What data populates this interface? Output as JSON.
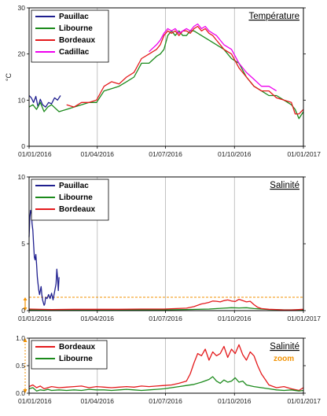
{
  "chart_data": [
    {
      "type": "line",
      "title": "Température",
      "ylabel": "°C",
      "xlabel": "",
      "ylim": [
        0,
        30
      ],
      "yticks": [
        "0",
        "10",
        "20",
        "30"
      ],
      "xlim": [
        0,
        366
      ],
      "xticks": [
        {
          "x": 0,
          "label": "01/01/2016"
        },
        {
          "x": 91,
          "label": "01/04/2016"
        },
        {
          "x": 182,
          "label": "01/07/2016"
        },
        {
          "x": 274,
          "label": "01/10/2016"
        },
        {
          "x": 366,
          "label": "01/01/2017"
        }
      ],
      "legend_position": "top-left",
      "grid": "vertical",
      "series": [
        {
          "name": "Pauillac",
          "color": "#1f1f8f",
          "x": [
            0,
            3,
            6,
            9,
            12,
            15,
            18,
            22,
            26,
            30,
            34,
            38,
            42
          ],
          "y": [
            11,
            10.5,
            9.5,
            10.8,
            8.5,
            10.2,
            9,
            8.5,
            9.5,
            9.2,
            10.5,
            10,
            11
          ]
        },
        {
          "name": "Libourne",
          "color": "#1b8a1b",
          "x": [
            0,
            5,
            10,
            15,
            20,
            25,
            30,
            40,
            50,
            60,
            70,
            80,
            90,
            100,
            110,
            120,
            130,
            140,
            150,
            160,
            170,
            175,
            180,
            185,
            190,
            195,
            200,
            205,
            210,
            215,
            220,
            230,
            240,
            250,
            260,
            270,
            280,
            290,
            300,
            310,
            320,
            330,
            340,
            350,
            355,
            360,
            366
          ],
          "y": [
            8.5,
            9,
            8,
            9.5,
            7.5,
            8.5,
            9,
            7.5,
            8,
            8.5,
            9,
            9.5,
            9.5,
            12,
            12.5,
            13,
            14,
            15,
            18,
            18,
            19.5,
            20,
            21,
            24,
            25,
            24,
            25,
            24,
            24,
            25,
            25,
            24,
            23,
            22,
            21,
            19,
            18,
            15,
            13,
            12,
            11,
            11,
            10,
            9,
            8,
            6,
            7.5
          ]
        },
        {
          "name": "Bordeaux",
          "color": "#e41a1c",
          "x": [
            50,
            60,
            70,
            80,
            90,
            95,
            100,
            110,
            120,
            130,
            140,
            150,
            160,
            170,
            175,
            180,
            185,
            190,
            195,
            200,
            205,
            210,
            215,
            220,
            225,
            230,
            235,
            240,
            245,
            250,
            255,
            260,
            270,
            280,
            290,
            300,
            310,
            320,
            330,
            340,
            350,
            355,
            360,
            366
          ],
          "y": [
            9,
            8.5,
            9.5,
            9.5,
            10,
            11.5,
            13,
            14,
            13.5,
            15,
            16,
            19,
            20,
            21,
            22,
            24,
            25,
            24.5,
            25,
            24,
            25,
            25,
            24.5,
            25.5,
            26,
            25,
            25.5,
            24.5,
            24,
            23,
            22,
            21,
            20,
            17,
            15,
            13,
            12,
            12,
            10.5,
            10,
            9.5,
            7,
            7,
            8
          ]
        },
        {
          "name": "Cadillac",
          "color": "#ee00ee",
          "x": [
            160,
            170,
            175,
            180,
            185,
            190,
            195,
            200,
            205,
            210,
            215,
            220,
            225,
            230,
            235,
            240,
            245,
            250,
            255,
            260,
            270,
            280,
            290,
            300,
            310,
            320,
            330
          ],
          "y": [
            20.5,
            22,
            23,
            24.5,
            25.5,
            25,
            25.5,
            24.5,
            25,
            25.5,
            25,
            26,
            26.5,
            25.5,
            26,
            25,
            24.5,
            24,
            23,
            22,
            21,
            18,
            16,
            14.5,
            13,
            13,
            12
          ]
        }
      ]
    },
    {
      "type": "line",
      "title": "Salinité",
      "ylabel": "",
      "xlabel": "",
      "ylim": [
        0,
        10
      ],
      "yticks": [
        "0",
        "5",
        "10"
      ],
      "xlim": [
        0,
        366
      ],
      "xticks": [
        {
          "x": 0,
          "label": "01/01/2016"
        },
        {
          "x": 91,
          "label": "01/04/2016"
        },
        {
          "x": 182,
          "label": "01/07/2016"
        },
        {
          "x": 274,
          "label": "01/10/2016"
        },
        {
          "x": 366,
          "label": "01/01/2017"
        }
      ],
      "legend_position": "top-left",
      "grid": "vertical",
      "zoom_band": [
        0,
        1
      ],
      "series": [
        {
          "name": "Pauillac",
          "color": "#1f1f8f",
          "x": [
            0,
            1,
            2,
            3,
            4,
            5,
            6,
            7,
            8,
            9,
            10,
            11,
            12,
            13,
            14,
            15,
            16,
            17,
            18,
            19,
            20,
            21,
            22,
            24,
            26,
            28,
            30,
            32,
            34,
            36,
            37,
            38,
            39,
            40
          ],
          "y": [
            5.5,
            7,
            7.5,
            7.3,
            6.5,
            6,
            5,
            4,
            3.8,
            4.2,
            3.5,
            2.5,
            2,
            1.5,
            1.2,
            1.5,
            1.8,
            1.2,
            0.8,
            0.6,
            0.4,
            0.5,
            1,
            0.9,
            1.2,
            0.9,
            1.3,
            0.8,
            1.4,
            2,
            3.1,
            2.5,
            1.5,
            2.5
          ]
        },
        {
          "name": "Libourne",
          "color": "#1b8a1b",
          "x": [
            0,
            30,
            60,
            90,
            120,
            150,
            180,
            210,
            240,
            260,
            270,
            280,
            290,
            300,
            310,
            320,
            340,
            366
          ],
          "y": [
            0.05,
            0.06,
            0.05,
            0.06,
            0.05,
            0.07,
            0.06,
            0.08,
            0.12,
            0.18,
            0.22,
            0.2,
            0.22,
            0.15,
            0.12,
            0.08,
            0.06,
            0.05
          ]
        },
        {
          "name": "Bordeaux",
          "color": "#e41a1c",
          "x": [
            0,
            30,
            60,
            90,
            120,
            150,
            180,
            210,
            220,
            230,
            235,
            240,
            245,
            250,
            255,
            260,
            265,
            270,
            275,
            280,
            285,
            290,
            295,
            300,
            305,
            310,
            320,
            330,
            340,
            350,
            366
          ],
          "y": [
            0.12,
            0.08,
            0.1,
            0.1,
            0.1,
            0.12,
            0.12,
            0.18,
            0.3,
            0.5,
            0.55,
            0.62,
            0.72,
            0.7,
            0.65,
            0.75,
            0.8,
            0.72,
            0.68,
            0.85,
            0.75,
            0.65,
            0.7,
            0.45,
            0.25,
            0.15,
            0.1,
            0.08,
            0.05,
            0.05,
            0.1
          ]
        }
      ]
    },
    {
      "type": "line",
      "title": "Salinité",
      "annotation": "zoom",
      "ylabel": "",
      "xlabel": "",
      "ylim": [
        0,
        1
      ],
      "yticks": [
        "0.0",
        "0.5",
        "1.0"
      ],
      "xlim": [
        0,
        366
      ],
      "xticks": [
        {
          "x": 0,
          "label": "01/01/2016"
        },
        {
          "x": 91,
          "label": "01/04/2016"
        },
        {
          "x": 182,
          "label": "01/07/2016"
        },
        {
          "x": 274,
          "label": "01/10/2016"
        },
        {
          "x": 366,
          "label": "01/01/2017"
        }
      ],
      "legend_position": "top-left",
      "grid": "vertical",
      "series": [
        {
          "name": "Bordeaux",
          "color": "#e41a1c",
          "x": [
            0,
            5,
            10,
            15,
            20,
            25,
            30,
            40,
            50,
            60,
            70,
            80,
            90,
            100,
            110,
            120,
            130,
            140,
            150,
            160,
            170,
            180,
            190,
            200,
            210,
            215,
            220,
            225,
            230,
            235,
            240,
            245,
            250,
            255,
            260,
            265,
            270,
            275,
            280,
            285,
            290,
            295,
            300,
            305,
            310,
            315,
            320,
            330,
            340,
            350,
            360,
            366
          ],
          "y": [
            0.12,
            0.15,
            0.1,
            0.13,
            0.08,
            0.1,
            0.12,
            0.1,
            0.11,
            0.12,
            0.13,
            0.1,
            0.12,
            0.11,
            0.1,
            0.11,
            0.12,
            0.11,
            0.13,
            0.12,
            0.13,
            0.14,
            0.15,
            0.18,
            0.22,
            0.35,
            0.55,
            0.72,
            0.68,
            0.8,
            0.6,
            0.75,
            0.68,
            0.72,
            0.85,
            0.65,
            0.8,
            0.72,
            0.88,
            0.7,
            0.6,
            0.75,
            0.68,
            0.5,
            0.35,
            0.25,
            0.15,
            0.1,
            0.12,
            0.08,
            0.05,
            0.1
          ]
        },
        {
          "name": "Libourne",
          "color": "#1b8a1b",
          "x": [
            0,
            5,
            10,
            15,
            20,
            25,
            30,
            40,
            50,
            60,
            70,
            80,
            90,
            100,
            110,
            120,
            130,
            140,
            150,
            160,
            170,
            180,
            190,
            200,
            210,
            220,
            230,
            240,
            245,
            250,
            255,
            260,
            265,
            270,
            275,
            280,
            285,
            290,
            300,
            310,
            320,
            330,
            340,
            350,
            360,
            366
          ],
          "y": [
            0.08,
            0.1,
            0.04,
            0.06,
            0.05,
            0.07,
            0.05,
            0.06,
            0.05,
            0.06,
            0.05,
            0.07,
            0.06,
            0.06,
            0.05,
            0.06,
            0.07,
            0.06,
            0.05,
            0.06,
            0.07,
            0.08,
            0.1,
            0.12,
            0.14,
            0.16,
            0.2,
            0.25,
            0.3,
            0.22,
            0.18,
            0.24,
            0.2,
            0.22,
            0.28,
            0.2,
            0.22,
            0.15,
            0.12,
            0.1,
            0.08,
            0.06,
            0.05,
            0.06,
            0.04,
            0.05
          ]
        }
      ]
    }
  ]
}
